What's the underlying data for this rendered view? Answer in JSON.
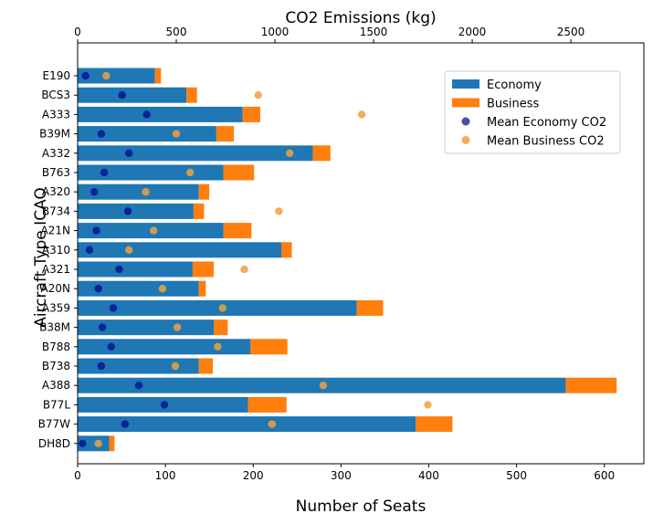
{
  "chart_data": {
    "type": "bar",
    "orientation": "horizontal",
    "stacked": true,
    "ylabel": "Aircraft Type ICAO",
    "xlabel": "Number of Seats",
    "x2label": "CO2 Emissions (kg)",
    "xlim": [
      0,
      645
    ],
    "x2lim": [
      0,
      2870
    ],
    "x_ticks": [
      0,
      100,
      200,
      300,
      400,
      500,
      600
    ],
    "x2_ticks": [
      0,
      500,
      1000,
      1500,
      2000,
      2500
    ],
    "legend_position": "upper-right",
    "categories": [
      "E190",
      "BCS3",
      "A333",
      "B39M",
      "A332",
      "B763",
      "A320",
      "B734",
      "A21N",
      "A310",
      "A321",
      "A20N",
      "A359",
      "B38M",
      "B788",
      "B738",
      "A388",
      "B77L",
      "B77W",
      "DH8D"
    ],
    "series": [
      {
        "name": "Economy",
        "kind": "bar",
        "color": "#1f77b4",
        "axis": "seats",
        "values": [
          88,
          124,
          188,
          158,
          268,
          166,
          138,
          132,
          166,
          232,
          131,
          138,
          318,
          155,
          197,
          138,
          556,
          194,
          385,
          36
        ]
      },
      {
        "name": "Business",
        "kind": "bar",
        "color": "#ff7f0e",
        "axis": "seats",
        "values": [
          7,
          12,
          20,
          20,
          20,
          35,
          12,
          12,
          32,
          12,
          24,
          8,
          30,
          16,
          42,
          16,
          58,
          44,
          42,
          6
        ]
      },
      {
        "name": "Mean Economy CO2",
        "kind": "scatter",
        "color": "#00008b",
        "axis": "co2",
        "values": [
          40,
          225,
          350,
          120,
          260,
          135,
          85,
          255,
          95,
          60,
          210,
          105,
          180,
          125,
          170,
          120,
          310,
          440,
          240,
          25
        ]
      },
      {
        "name": "Mean Business CO2",
        "kind": "scatter",
        "color": "#f0a040",
        "axis": "co2",
        "values": [
          145,
          915,
          1440,
          500,
          1075,
          570,
          345,
          1020,
          385,
          260,
          845,
          430,
          735,
          505,
          710,
          495,
          1245,
          1775,
          985,
          105
        ]
      }
    ]
  }
}
